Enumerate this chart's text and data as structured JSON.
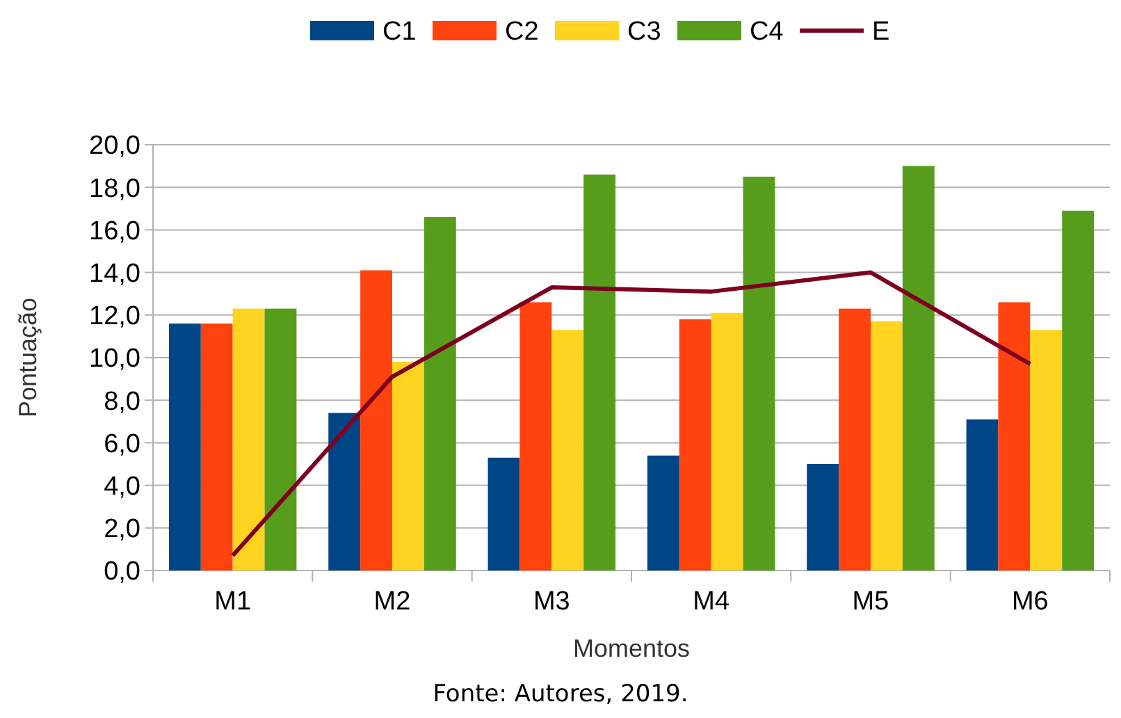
{
  "chart_data": {
    "type": "bar",
    "xlabel": "Momentos",
    "ylabel": "Pontuação",
    "categories": [
      "M1",
      "M2",
      "M3",
      "M4",
      "M5",
      "M6"
    ],
    "series": [
      {
        "name": "C1",
        "color": "#004586",
        "values": [
          11.6,
          7.4,
          5.3,
          5.4,
          5.0,
          7.1
        ]
      },
      {
        "name": "C2",
        "color": "#ff420e",
        "values": [
          11.6,
          14.1,
          12.6,
          11.8,
          12.3,
          12.6
        ]
      },
      {
        "name": "C3",
        "color": "#ffd320",
        "values": [
          12.3,
          9.8,
          11.3,
          12.1,
          11.7,
          11.3
        ]
      },
      {
        "name": "C4",
        "color": "#579d1c",
        "values": [
          12.3,
          16.6,
          18.6,
          18.5,
          19.0,
          16.9
        ]
      },
      {
        "name": "E",
        "type": "line",
        "color": "#7e0021",
        "values": [
          0.7,
          9.1,
          13.3,
          13.1,
          14.0,
          9.7
        ]
      }
    ],
    "ylim": [
      0,
      20
    ],
    "yticks": [
      {
        "value": 0,
        "label": "0,0"
      },
      {
        "value": 2,
        "label": "2,0"
      },
      {
        "value": 4,
        "label": "4,0"
      },
      {
        "value": 6,
        "label": "6,0"
      },
      {
        "value": 8,
        "label": "8,0"
      },
      {
        "value": 10,
        "label": "10,0"
      },
      {
        "value": 12,
        "label": "12,0"
      },
      {
        "value": 14,
        "label": "14,0"
      },
      {
        "value": 16,
        "label": "16,0"
      },
      {
        "value": 18,
        "label": "18,0"
      },
      {
        "value": 20,
        "label": "20,0"
      }
    ],
    "grid": "y",
    "legend": "top",
    "annotations": [
      "Fonte: Autores, 2019."
    ]
  }
}
